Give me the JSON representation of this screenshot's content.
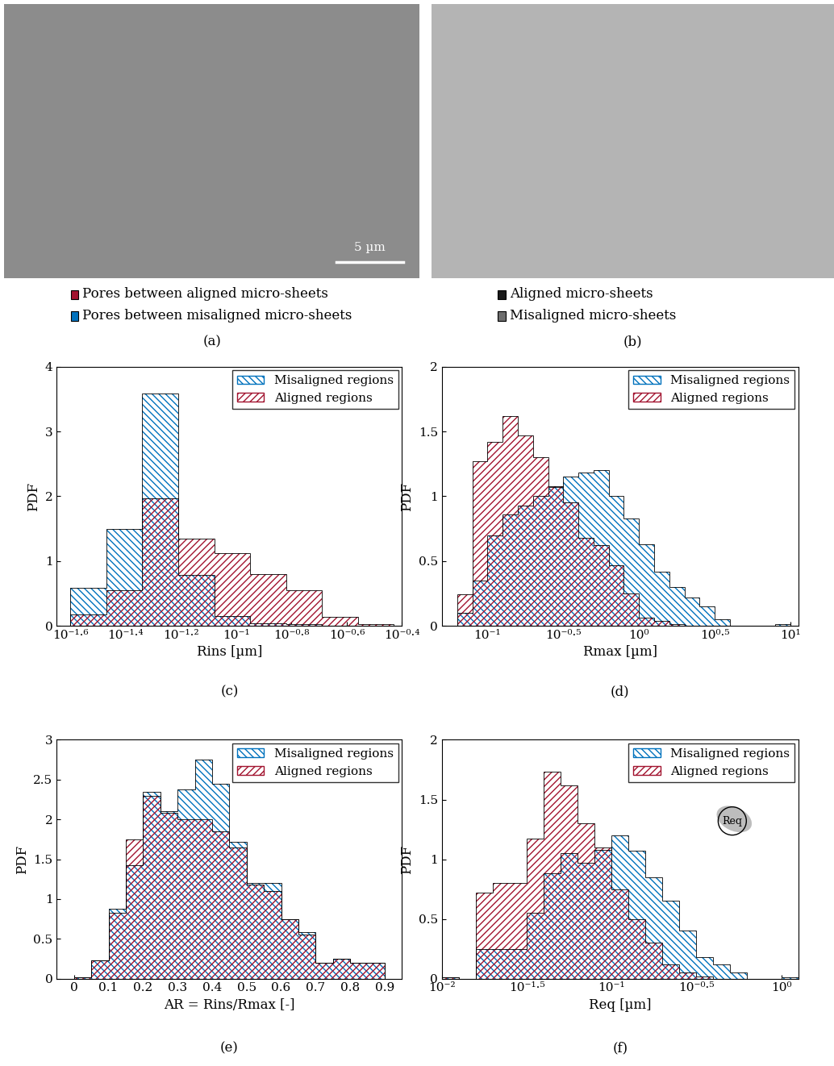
{
  "images": [
    {
      "label": "(a)",
      "scale_bar": "5 µm",
      "legend": [
        {
          "name": "Pores between aligned micro-sheets",
          "color": "#A2142F"
        },
        {
          "name": "Pores between misaligned micro-sheets",
          "color": "#0072BD"
        }
      ]
    },
    {
      "label": "(b)",
      "legend": [
        {
          "name": "Aligned micro-sheets",
          "color": "#1a1a1a"
        },
        {
          "name": "Misaligned micro-sheets",
          "color": "#6e6e6e"
        }
      ]
    }
  ],
  "chart_data": [
    {
      "type": "histogram",
      "label": "(c)",
      "xlabel": "Rins [µm]",
      "ylabel": "PDF",
      "log": "x",
      "legend": "upper right",
      "bins": [
        0.02512,
        0.03388,
        0.04571,
        0.06166,
        0.08318,
        0.1122,
        0.1514,
        0.2042,
        0.2754,
        0.3715
      ],
      "series": [
        {
          "name": "Misaligned regions",
          "color": "#0072BD",
          "values": [
            0.58,
            1.49,
            3.58,
            0.78,
            0.15,
            0.04,
            0.02,
            0,
            0
          ]
        },
        {
          "name": "Aligned regions",
          "color": "#A2142F",
          "values": [
            0.17,
            0.55,
            1.97,
            1.35,
            1.12,
            0.8,
            0.55,
            0.14,
            0.02
          ]
        }
      ],
      "xlim": [
        0.02239,
        0.3981
      ],
      "ylim": [
        0,
        4
      ],
      "xticks": [
        {
          "value": 0.02512,
          "label": "10⁻¹·⁶"
        },
        {
          "value": 0.03981,
          "label": "10⁻¹·⁴"
        },
        {
          "value": 0.0631,
          "label": "10⁻¹·²"
        },
        {
          "value": 0.1,
          "label": "10⁻¹"
        },
        {
          "value": 0.1585,
          "label": "10⁻⁰·⁸"
        },
        {
          "value": 0.2512,
          "label": "10⁻⁰·⁶"
        },
        {
          "value": 0.3981,
          "label": "10⁻⁰·⁴"
        }
      ],
      "yticks": [
        0,
        1,
        2,
        3,
        4
      ]
    },
    {
      "type": "histogram",
      "label": "(d)",
      "xlabel": "Rmax [µm]",
      "ylabel": "PDF",
      "log": "x",
      "legend": "upper right",
      "bins": [
        0.0631,
        0.07943,
        0.1,
        0.1259,
        0.1585,
        0.1995,
        0.2512,
        0.3162,
        0.3981,
        0.5012,
        0.631,
        0.7943,
        1,
        1.259,
        1.585,
        1.995,
        2.512,
        3.162,
        3.981,
        5.012,
        6.31,
        7.943,
        10
      ],
      "series": [
        {
          "name": "Misaligned regions",
          "color": "#0072BD",
          "values": [
            0.1,
            0.35,
            0.7,
            0.86,
            0.93,
            1.0,
            1.07,
            1.15,
            1.18,
            1.2,
            1.0,
            0.83,
            0.63,
            0.42,
            0.3,
            0.22,
            0.15,
            0.05,
            0,
            0,
            0,
            0.01
          ]
        },
        {
          "name": "Aligned regions",
          "color": "#A2142F",
          "values": [
            0.24,
            1.27,
            1.42,
            1.62,
            1.47,
            1.3,
            1.08,
            0.95,
            0.68,
            0.62,
            0.47,
            0.25,
            0.06,
            0.04,
            0.01,
            0,
            0,
            0,
            0,
            0,
            0,
            0
          ]
        }
      ],
      "xlim": [
        0.05012,
        11.22
      ],
      "ylim": [
        0,
        2
      ],
      "xticks": [
        {
          "value": 0.1,
          "label": "10⁻¹"
        },
        {
          "value": 0.3162,
          "label": "10⁻⁰·⁵"
        },
        {
          "value": 1,
          "label": "10⁰"
        },
        {
          "value": 3.162,
          "label": "10⁰·⁵"
        },
        {
          "value": 10,
          "label": "10¹"
        }
      ],
      "yticks": [
        0,
        0.5,
        1,
        1.5,
        2
      ]
    },
    {
      "type": "histogram",
      "label": "(e)",
      "xlabel": "AR = Rins/Rmax [-]",
      "ylabel": "PDF",
      "legend": "upper right",
      "bins": [
        0,
        0.05,
        0.1,
        0.15,
        0.2,
        0.25,
        0.3,
        0.35,
        0.4,
        0.45,
        0.5,
        0.55,
        0.6,
        0.65,
        0.7,
        0.75,
        0.8,
        0.85,
        0.9
      ],
      "series": [
        {
          "name": "Misaligned regions",
          "color": "#0072BD",
          "values": [
            0.02,
            0.23,
            0.88,
            1.42,
            2.35,
            2.1,
            2.38,
            2.75,
            2.45,
            1.72,
            1.2,
            1.2,
            0.75,
            0.58,
            0.2,
            0.25,
            0.2,
            0.2
          ]
        },
        {
          "name": "Aligned regions",
          "color": "#A2142F",
          "values": [
            0.02,
            0.23,
            0.83,
            1.75,
            2.3,
            2.08,
            2.0,
            2.0,
            1.85,
            1.65,
            1.18,
            1.1,
            0.75,
            0.55,
            0.2,
            0.25,
            0.2,
            0.2
          ]
        }
      ],
      "xlim": [
        -0.05,
        0.95
      ],
      "ylim": [
        0,
        3
      ],
      "xticks": [
        0,
        0.1,
        0.2,
        0.3,
        0.4,
        0.5,
        0.6,
        0.7,
        0.8,
        0.9
      ],
      "yticks": [
        0,
        0.5,
        1,
        1.5,
        2,
        2.5,
        3
      ]
    },
    {
      "type": "histogram",
      "label": "(f)",
      "xlabel": "Req [µm]",
      "ylabel": "PDF",
      "log": "x",
      "legend": "upper right",
      "inset_label": "Req",
      "bins": [
        0.01,
        0.01259,
        0.01585,
        0.01995,
        0.02512,
        0.03162,
        0.03981,
        0.05012,
        0.0631,
        0.07943,
        0.1,
        0.1259,
        0.1585,
        0.1995,
        0.2512,
        0.3162,
        0.3981,
        0.5012,
        0.631,
        0.7943,
        1,
        1.259
      ],
      "series": [
        {
          "name": "Misaligned regions",
          "color": "#0072BD",
          "values": [
            0.01,
            0,
            0.25,
            0.25,
            0.25,
            0.55,
            0.88,
            1.05,
            0.97,
            1.08,
            1.2,
            1.07,
            0.85,
            0.65,
            0.4,
            0.18,
            0.12,
            0.05,
            0,
            0,
            0.01
          ]
        },
        {
          "name": "Aligned regions",
          "color": "#A2142F",
          "values": [
            0.01,
            0,
            0.72,
            0.8,
            0.8,
            1.17,
            1.73,
            1.62,
            1.3,
            1.1,
            0.75,
            0.5,
            0.3,
            0.12,
            0.05,
            0.02,
            0,
            0,
            0,
            0,
            0
          ]
        }
      ],
      "xlim": [
        0.01,
        1.259
      ],
      "ylim": [
        0,
        2
      ],
      "xticks": [
        {
          "value": 0.01,
          "label": "10⁻²"
        },
        {
          "value": 0.03162,
          "label": "10⁻¹·⁵"
        },
        {
          "value": 0.1,
          "label": "10⁻¹"
        },
        {
          "value": 0.3162,
          "label": "10⁻⁰·⁵"
        },
        {
          "value": 1,
          "label": "10⁰"
        }
      ],
      "yticks": [
        0,
        0.5,
        1,
        1.5,
        2
      ]
    }
  ]
}
